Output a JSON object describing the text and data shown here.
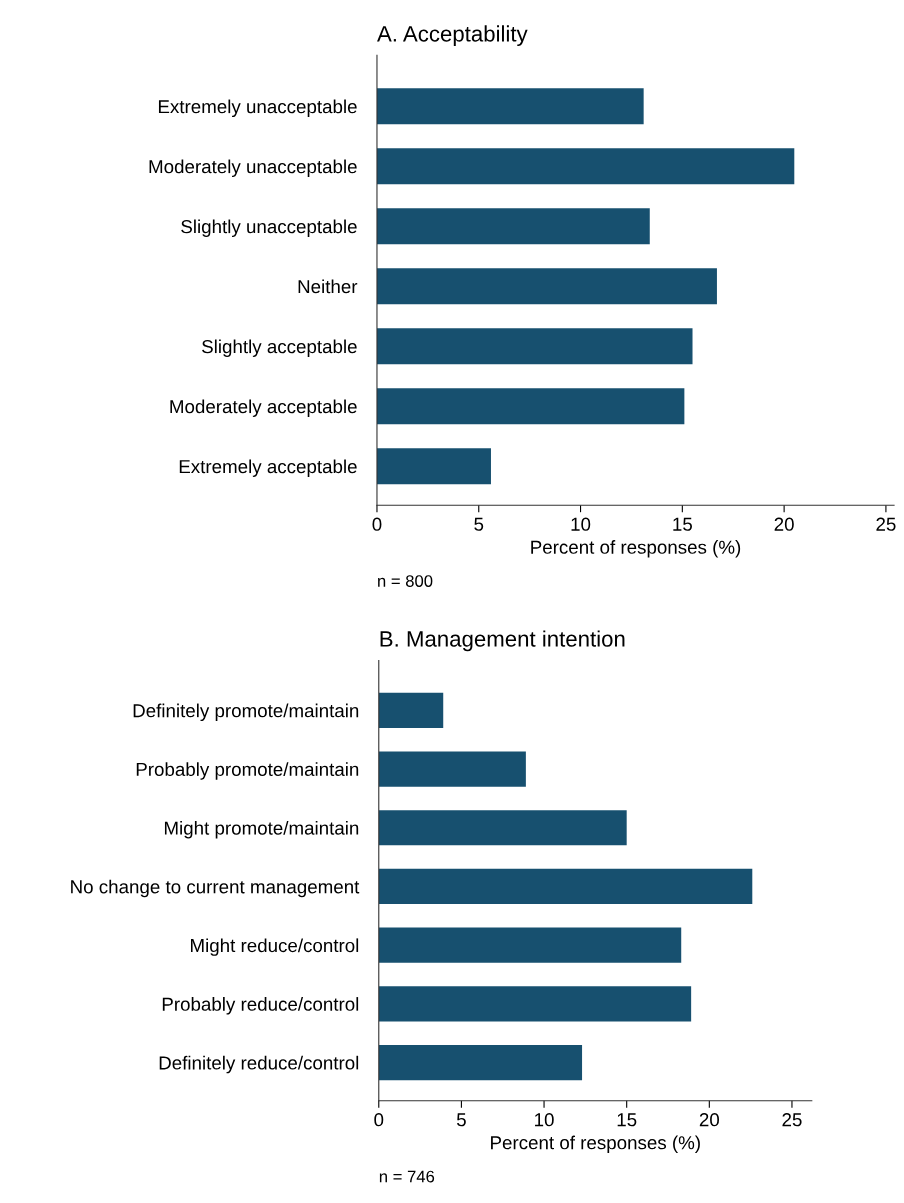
{
  "chart_data": [
    {
      "type": "bar",
      "orientation": "horizontal",
      "title": "A. Acceptability",
      "xlabel": "Percent of responses (%)",
      "categories": [
        "Extremely unacceptable",
        "Moderately unacceptable",
        "Slightly unacceptable",
        "Neither",
        "Slightly acceptable",
        "Moderately acceptable",
        "Extremely acceptable"
      ],
      "values": [
        13.1,
        20.5,
        13.4,
        16.7,
        15.5,
        15.1,
        5.6
      ],
      "color": "#17506f",
      "xlim": [
        0,
        25.4
      ],
      "xticks": [
        0,
        5,
        10,
        15,
        20,
        25
      ],
      "grid": false,
      "annotations": [
        "n = 800"
      ]
    },
    {
      "type": "bar",
      "orientation": "horizontal",
      "title": "B. Management intention",
      "xlabel": "Percent of responses (%)",
      "categories": [
        "Definitely promote/maintain",
        "Probably promote/maintain",
        "Might promote/maintain",
        "No change to current management",
        "Might reduce/control",
        "Probably reduce/control",
        "Definitely reduce/control"
      ],
      "values": [
        3.9,
        8.9,
        15.0,
        22.6,
        18.3,
        18.9,
        12.3
      ],
      "color": "#17506f",
      "xlim": [
        0,
        26.2
      ],
      "xticks": [
        0,
        5,
        10,
        15,
        20,
        25
      ],
      "grid": false,
      "annotations": [
        "n = 746"
      ]
    }
  ]
}
